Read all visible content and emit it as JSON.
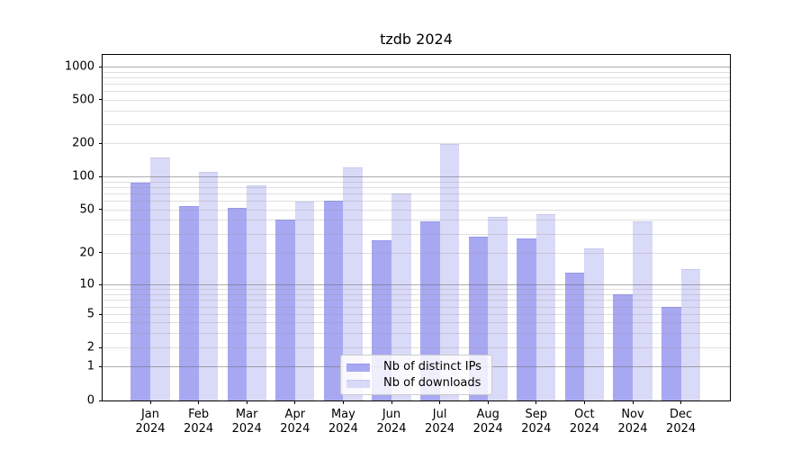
{
  "title": "tzdb 2024",
  "chart_data": {
    "type": "bar",
    "title": "tzdb 2024",
    "categories": [
      "Jan",
      "Feb",
      "Mar",
      "Apr",
      "May",
      "Jun",
      "Jul",
      "Aug",
      "Sep",
      "Oct",
      "Nov",
      "Dec"
    ],
    "year": "2024",
    "series": [
      {
        "name": "Nb of distinct IPs",
        "color": "#a8a8f2",
        "edge_color": "#9595ea",
        "values": [
          87,
          54,
          52,
          40,
          60,
          26,
          39,
          28,
          27,
          13,
          8,
          6
        ]
      },
      {
        "name": "Nb of downloads",
        "color": "#d9d9f8",
        "edge_color": "#c7c8f1",
        "values": [
          150,
          110,
          83,
          59,
          120,
          70,
          197,
          43,
          45,
          22,
          39,
          14
        ]
      }
    ],
    "y_axis": {
      "scale": "symlog",
      "ticks": [
        0,
        1,
        2,
        5,
        10,
        20,
        50,
        100,
        200,
        500,
        1000
      ],
      "major_gridlines": [
        1,
        10,
        100,
        1000
      ],
      "minor_gridlines": [
        2,
        3,
        4,
        5,
        6,
        7,
        8,
        9,
        20,
        30,
        40,
        50,
        60,
        70,
        80,
        90,
        200,
        300,
        400,
        500,
        600,
        700,
        800,
        900
      ],
      "ylim": [
        0,
        1278
      ]
    },
    "x_axis": {
      "label_line2": "2024"
    },
    "legend": {
      "position": "lower center"
    },
    "grid": true,
    "background": "#ffffff",
    "spine_color": "#000000"
  }
}
